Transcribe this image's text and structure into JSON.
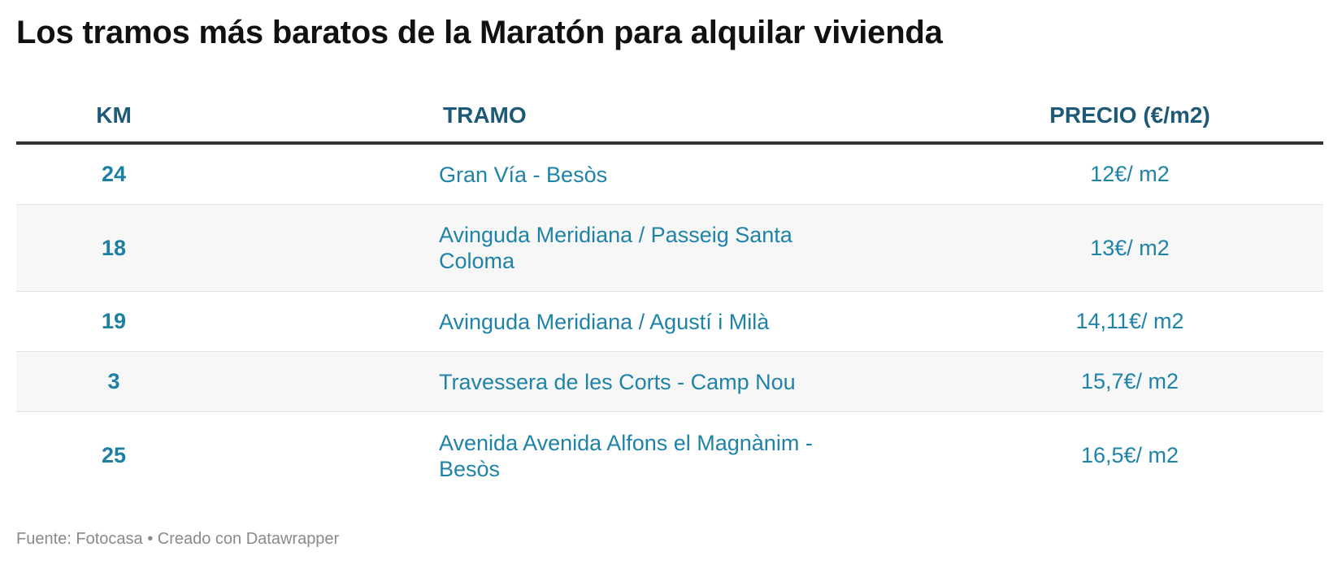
{
  "title": "Los tramos más baratos de la Maratón para alquilar vivienda",
  "table": {
    "headers": {
      "km": "KM",
      "tramo": "TRAMO",
      "precio": "PRECIO (€/m2)"
    },
    "rows": [
      {
        "km": "24",
        "tramo": "Gran Vía - Besòs",
        "precio": "12€/ m2"
      },
      {
        "km": "18",
        "tramo": "Avinguda Meridiana / Passeig Santa Coloma",
        "precio": "13€/ m2"
      },
      {
        "km": "19",
        "tramo": "Avinguda Meridiana / Agustí i Milà",
        "precio": "14,11€/ m2"
      },
      {
        "km": "3",
        "tramo": "Travessera de les Corts - Camp Nou",
        "precio": "15,7€/ m2"
      },
      {
        "km": "25",
        "tramo": "Avenida Avenida Alfons el Magnànim - Besòs",
        "precio": "16,5€/ m2"
      }
    ]
  },
  "footer": "Fuente: Fotocasa • Creado con Datawrapper",
  "colors": {
    "header_text": "#1d5a77",
    "cell_text": "#1f83a8",
    "alt_row_bg": "#f7f7f7",
    "header_rule": "#333333"
  },
  "chart_data": {
    "type": "table",
    "title": "Los tramos más baratos de la Maratón para alquilar vivienda",
    "columns": [
      "KM",
      "TRAMO",
      "PRECIO (€/m2)"
    ],
    "rows": [
      [
        "24",
        "Gran Vía - Besòs",
        "12€/ m2"
      ],
      [
        "18",
        "Avinguda Meridiana / Passeig Santa Coloma",
        "13€/ m2"
      ],
      [
        "19",
        "Avinguda Meridiana / Agustí i Milà",
        "14,11€/ m2"
      ],
      [
        "3",
        "Travessera de les Corts - Camp Nou",
        "15,7€/ m2"
      ],
      [
        "25",
        "Avenida Avenida Alfons el Magnànim - Besòs",
        "16,5€/ m2"
      ]
    ],
    "values": [
      12,
      13,
      14.11,
      15.7,
      16.5
    ]
  }
}
